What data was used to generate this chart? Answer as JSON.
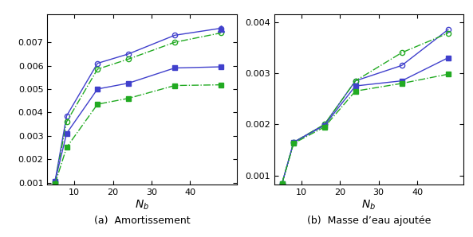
{
  "x": [
    5,
    8,
    16,
    24,
    36,
    48
  ],
  "left_circle_blue": [
    0.00105,
    0.00385,
    0.0061,
    0.0065,
    0.0073,
    0.0076
  ],
  "left_circle_green": [
    0.001,
    0.0036,
    0.00585,
    0.00628,
    0.007,
    0.0074
  ],
  "left_square_blue": [
    0.00105,
    0.0031,
    0.005,
    0.00525,
    0.0059,
    0.00595
  ],
  "left_square_green": [
    0.00095,
    0.0025,
    0.00435,
    0.0046,
    0.00515,
    0.00518
  ],
  "right_circle_blue": [
    0.00085,
    0.00165,
    0.002,
    0.00285,
    0.00315,
    0.00385
  ],
  "right_circle_green": [
    0.00085,
    0.00165,
    0.002,
    0.00285,
    0.0034,
    0.00378
  ],
  "right_square_blue": [
    0.00085,
    0.00165,
    0.00198,
    0.00275,
    0.00285,
    0.0033
  ],
  "right_square_green": [
    0.00085,
    0.00163,
    0.00195,
    0.00265,
    0.0028,
    0.00298
  ],
  "blue": "#4040cc",
  "green": "#22aa22",
  "xlabel": "$N_b$",
  "left_caption": "(a)  Amortissement",
  "right_caption": "(b)  Masse d’eau ajoutée",
  "left_ylim": [
    0.0009,
    0.0082
  ],
  "right_ylim": [
    0.00082,
    0.00415
  ],
  "left_yticks": [
    0.001,
    0.002,
    0.003,
    0.004,
    0.005,
    0.006,
    0.007
  ],
  "right_yticks": [
    0.001,
    0.002,
    0.003,
    0.004
  ],
  "xticks": [
    10,
    20,
    30,
    40
  ],
  "xlim_left": [
    3,
    52
  ],
  "xlim_right": [
    3,
    52
  ]
}
